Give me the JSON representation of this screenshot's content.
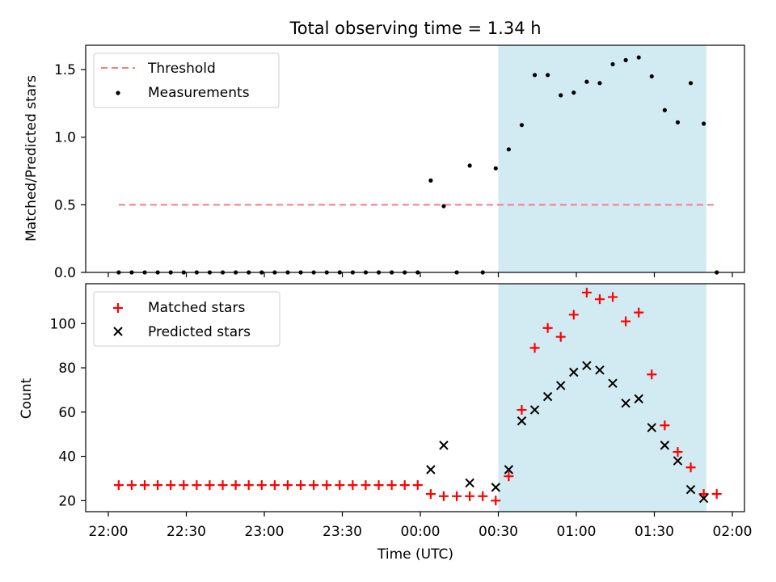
{
  "title": "Total observing time = 1.34 h",
  "colors": {
    "threshold": "#f08080",
    "measurement": "#000000",
    "matched": "#ff0000",
    "predicted": "#000000",
    "observing_window": "#add8e6"
  },
  "chart_data": [
    {
      "type": "scatter",
      "x_unit": "minutes after 22:00 UTC",
      "ylabel": "Matched/Predicted stars",
      "ylim": [
        0,
        1.68
      ],
      "yticks": [
        "0.0",
        "0.5",
        "1.0",
        "1.5"
      ],
      "legend": [
        "Threshold",
        "Measurements"
      ],
      "legend_position": "upper-left",
      "observing_window": {
        "start": "00:30",
        "end": "01:50"
      },
      "threshold": {
        "y": 0.5,
        "x_start": "22:04",
        "x_end": "01:54"
      },
      "series": [
        {
          "name": "Measurements",
          "x": [
            "22:04",
            "22:09",
            "22:14",
            "22:19",
            "22:24",
            "22:29",
            "22:34",
            "22:39",
            "22:44",
            "22:49",
            "22:54",
            "22:59",
            "23:04",
            "23:09",
            "23:14",
            "23:19",
            "23:24",
            "23:29",
            "23:34",
            "23:39",
            "23:44",
            "23:49",
            "23:54",
            "23:59",
            "00:04",
            "00:09",
            "00:14",
            "00:19",
            "00:24",
            "00:29",
            "00:34",
            "00:39",
            "00:44",
            "00:49",
            "00:54",
            "00:59",
            "01:04",
            "01:09",
            "01:14",
            "01:19",
            "01:24",
            "01:29",
            "01:34",
            "01:39",
            "01:44",
            "01:49",
            "01:54"
          ],
          "values": [
            0,
            0,
            0,
            0,
            0,
            0,
            0,
            0,
            0,
            0,
            0,
            0,
            0,
            0,
            0,
            0,
            0,
            0,
            0,
            0,
            0,
            0,
            0,
            0,
            0.68,
            0.49,
            0,
            0.79,
            0,
            0.77,
            0.91,
            1.09,
            1.46,
            1.46,
            1.31,
            1.33,
            1.41,
            1.4,
            1.54,
            1.57,
            1.59,
            1.45,
            1.2,
            1.11,
            1.4,
            1.1,
            0
          ]
        }
      ]
    },
    {
      "type": "scatter",
      "xlabel": "Time (UTC)",
      "ylabel": "Count",
      "ylim": [
        15,
        118
      ],
      "yticks": [
        "20",
        "40",
        "60",
        "80",
        "100"
      ],
      "xticks": [
        "22:00",
        "22:30",
        "23:00",
        "23:30",
        "00:00",
        "00:30",
        "01:00",
        "01:30",
        "02:00"
      ],
      "legend": [
        "Matched stars",
        "Predicted stars"
      ],
      "legend_position": "upper-left",
      "observing_window": {
        "start": "00:30",
        "end": "01:50"
      },
      "series": [
        {
          "name": "Matched stars",
          "x": [
            "22:04",
            "22:09",
            "22:14",
            "22:19",
            "22:24",
            "22:29",
            "22:34",
            "22:39",
            "22:44",
            "22:49",
            "22:54",
            "22:59",
            "23:04",
            "23:09",
            "23:14",
            "23:19",
            "23:24",
            "23:29",
            "23:34",
            "23:39",
            "23:44",
            "23:49",
            "23:54",
            "23:59",
            "00:04",
            "00:09",
            "00:14",
            "00:19",
            "00:24",
            "00:29",
            "00:34",
            "00:39",
            "00:44",
            "00:49",
            "00:54",
            "00:59",
            "01:04",
            "01:09",
            "01:14",
            "01:19",
            "01:24",
            "01:29",
            "01:34",
            "01:39",
            "01:44",
            "01:49",
            "01:54"
          ],
          "values": [
            27,
            27,
            27,
            27,
            27,
            27,
            27,
            27,
            27,
            27,
            27,
            27,
            27,
            27,
            27,
            27,
            27,
            27,
            27,
            27,
            27,
            27,
            27,
            27,
            23,
            22,
            22,
            22,
            22,
            20,
            31,
            61,
            89,
            98,
            94,
            104,
            114,
            111,
            112,
            101,
            105,
            77,
            54,
            42,
            35,
            23,
            23
          ]
        },
        {
          "name": "Predicted stars",
          "x": [
            "00:04",
            "00:09",
            "00:19",
            "00:29",
            "00:34",
            "00:39",
            "00:44",
            "00:49",
            "00:54",
            "00:59",
            "01:04",
            "01:09",
            "01:14",
            "01:19",
            "01:24",
            "01:29",
            "01:34",
            "01:39",
            "01:44",
            "01:49"
          ],
          "values": [
            34,
            45,
            28,
            26,
            34,
            56,
            61,
            67,
            72,
            78,
            81,
            79,
            73,
            64,
            66,
            53,
            45,
            38,
            25,
            21
          ]
        }
      ]
    }
  ]
}
